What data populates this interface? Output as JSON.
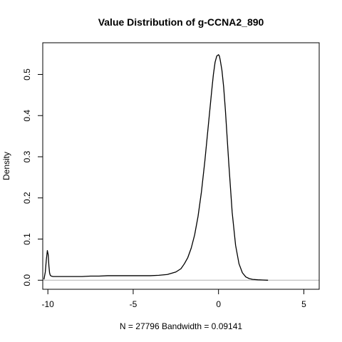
{
  "chart_data": {
    "type": "line",
    "title": "Value Distribution of g-CCNA2_890",
    "xlabel": "N = 27796   Bandwidth = 0.09141",
    "ylabel": "Density",
    "xlim": [
      -10.3,
      5.9
    ],
    "ylim": [
      -0.022,
      0.577
    ],
    "x_ticks": [
      -10,
      -5,
      0,
      5
    ],
    "x_tick_labels": [
      "-10",
      "-5",
      "0",
      "5"
    ],
    "y_ticks": [
      0.0,
      0.1,
      0.2,
      0.3,
      0.4,
      0.5
    ],
    "y_tick_labels": [
      "0.0",
      "0.1",
      "0.2",
      "0.3",
      "0.4",
      "0.5"
    ],
    "baseline": 0,
    "grid": false,
    "legend": "none",
    "colors": {
      "line": "#000000",
      "baseline": "#b3b3b3",
      "axis": "#000000"
    },
    "series": [
      {
        "x": [
          -10.23,
          -10.15,
          -10.09,
          -10.03,
          -9.98,
          -9.94,
          -9.9,
          -9.86,
          -9.8,
          -9.7,
          -9.5,
          -9.0,
          -8.5,
          -8.0,
          -7.5,
          -7.0,
          -6.5,
          -6.0,
          -5.5,
          -5.0,
          -4.5,
          -4.0,
          -3.5,
          -3.0,
          -2.5,
          -2.2,
          -2.0,
          -1.8,
          -1.6,
          -1.4,
          -1.2,
          -1.0,
          -0.8,
          -0.6,
          -0.4,
          -0.3,
          -0.2,
          -0.1,
          0.0,
          0.05,
          0.1,
          0.2,
          0.3,
          0.4,
          0.5,
          0.6,
          0.8,
          1.0,
          1.2,
          1.4,
          1.6,
          1.8,
          2.0,
          2.3,
          2.6,
          2.9
        ],
        "y": [
          0.002,
          0.02,
          0.05,
          0.072,
          0.062,
          0.035,
          0.018,
          0.012,
          0.01,
          0.009,
          0.009,
          0.009,
          0.009,
          0.009,
          0.01,
          0.01,
          0.011,
          0.011,
          0.011,
          0.011,
          0.011,
          0.011,
          0.012,
          0.014,
          0.02,
          0.028,
          0.04,
          0.055,
          0.078,
          0.11,
          0.155,
          0.215,
          0.29,
          0.375,
          0.46,
          0.5,
          0.53,
          0.545,
          0.548,
          0.545,
          0.535,
          0.51,
          0.47,
          0.415,
          0.35,
          0.285,
          0.165,
          0.085,
          0.04,
          0.018,
          0.008,
          0.004,
          0.002,
          0.001,
          0.0005,
          0.0
        ]
      }
    ]
  }
}
